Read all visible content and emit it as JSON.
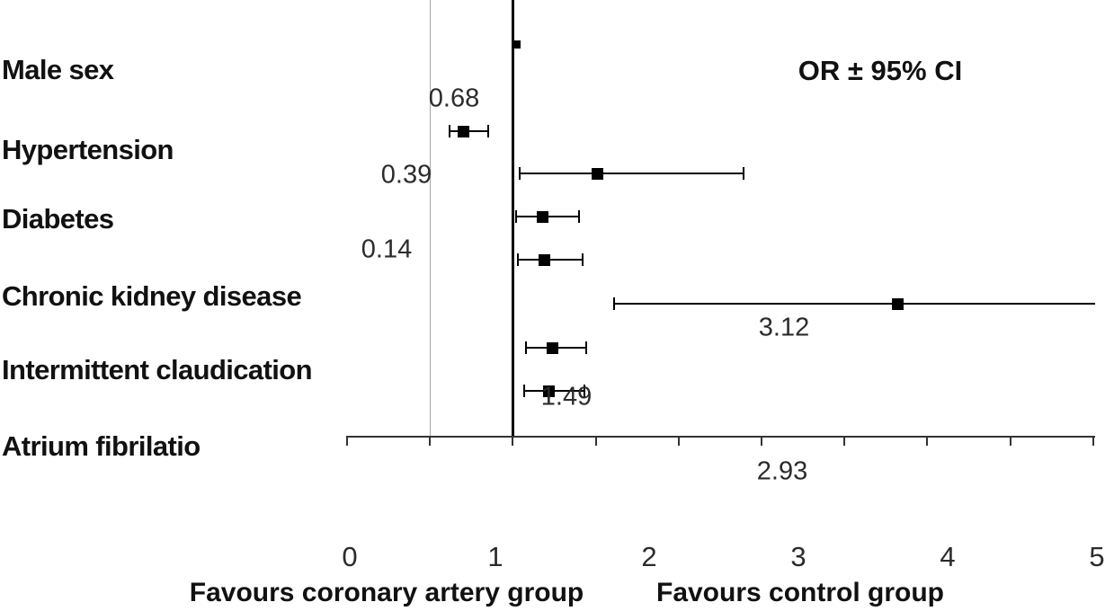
{
  "chart_data": {
    "type": "scatter",
    "subtype": "forest-plot",
    "title": "",
    "legend": "OR ± 95% CI",
    "categories": [
      "Male sex",
      "Hypertension",
      "Diabetes",
      "Chronic kidney disease",
      "Intermittent claudication",
      "Atrium fibrilatio"
    ],
    "points": [
      {
        "category": "Male sex",
        "or": 1.02,
        "ci_low": null,
        "ci_high": null,
        "small_marker": true
      },
      {
        "category": "Hypertension",
        "or": 0.7,
        "ci_low": 0.62,
        "ci_high": 0.85
      },
      {
        "category": "Hypertension",
        "or": 1.51,
        "ci_low": 1.04,
        "ci_high": 2.39
      },
      {
        "category": "Diabetes",
        "or": 1.18,
        "ci_low": 1.02,
        "ci_high": 1.4
      },
      {
        "category": "Diabetes",
        "or": 1.19,
        "ci_low": 1.03,
        "ci_high": 1.42
      },
      {
        "category": "Chronic kidney disease",
        "or": 3.32,
        "ci_low": 1.61,
        "ci_high": 4.51,
        "cap_right": false
      },
      {
        "category": "Intermittent claudication",
        "or": 1.24,
        "ci_low": 1.08,
        "ci_high": 1.44
      },
      {
        "category": "Intermittent claudication",
        "or": 1.22,
        "ci_low": 1.07,
        "ci_high": 1.43
      }
    ],
    "annotations": [
      "0.68",
      "0.39",
      "0.14",
      "3.12",
      "1.49",
      "2.93"
    ],
    "xaxis": {
      "range": [
        0,
        5
      ],
      "tick_labels": [
        "0",
        "1",
        "2",
        "3",
        "4",
        "5"
      ],
      "minor_tick_interval": 0.5,
      "caption_left": "Favours coronary artery group",
      "caption_right": "Favours control group"
    },
    "reference_lines": [
      {
        "x": 0.5,
        "color": "#a6a6a6",
        "weight": "thin"
      },
      {
        "x": 1.0,
        "color": "#000000",
        "weight": "thick"
      }
    ],
    "colors": {
      "marker": "#000000",
      "axis": "#333333",
      "text": "#111111"
    },
    "grid": false,
    "legend_position": "top-right"
  }
}
